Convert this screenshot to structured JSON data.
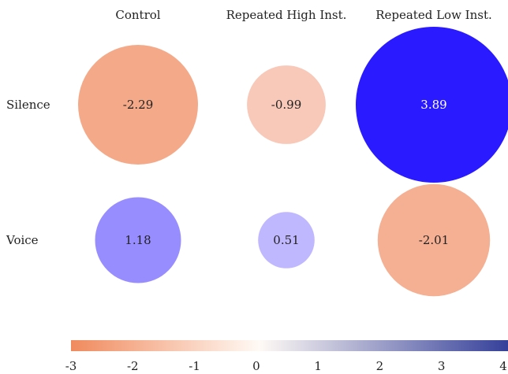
{
  "chart_data": {
    "type": "heatmap",
    "columns": [
      "Control",
      "Repeated High Inst.",
      "Repeated Low Inst."
    ],
    "rows": [
      "Silence",
      "Voice"
    ],
    "values": [
      [
        -2.29,
        -0.99,
        3.89
      ],
      [
        1.18,
        0.51,
        -2.01
      ]
    ],
    "value_labels": [
      [
        "-2.29",
        "-0.99",
        "3.89"
      ],
      [
        "1.18",
        "0.51",
        "-2.01"
      ]
    ],
    "color_range": [
      -3,
      4
    ],
    "colorbar_ticks": [
      "-3",
      "-2",
      "-1",
      "0",
      "1",
      "2",
      "3",
      "4"
    ],
    "negative_color": "#f08a5d",
    "positive_color": "#2a1aff",
    "legend_position": "bottom"
  }
}
